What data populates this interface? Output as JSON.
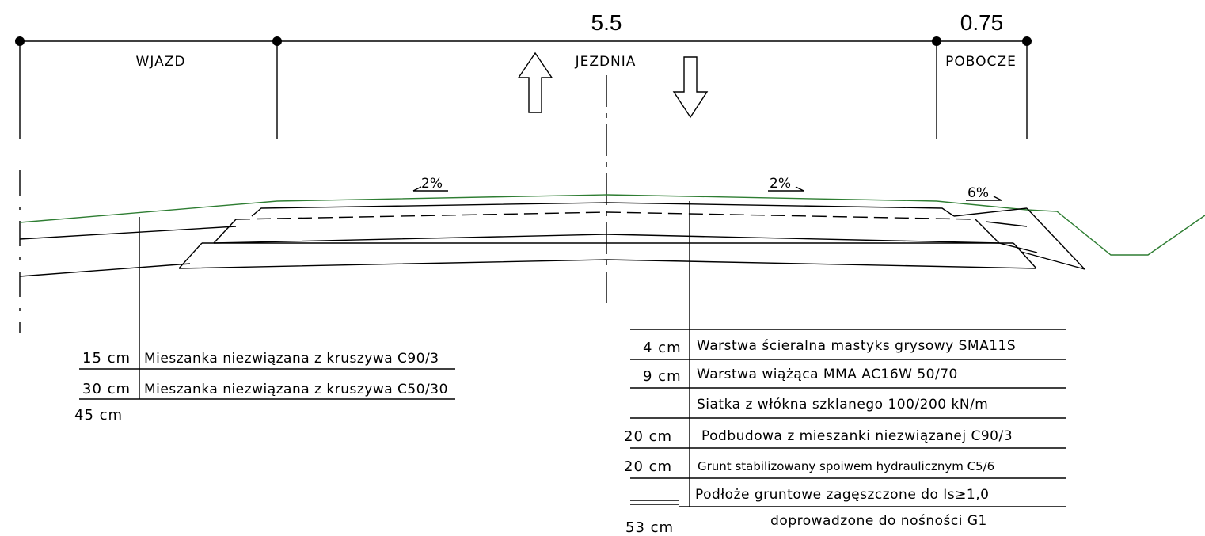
{
  "dimensions": {
    "carriageway_width": "5.5",
    "shoulder_width": "0.75"
  },
  "zones": {
    "entry": "WJAZD",
    "carriageway": "JEZDNIA",
    "shoulder": "POBOCZE"
  },
  "slopes": {
    "left": "2%",
    "right": "2%",
    "shoulder": "6%"
  },
  "left_structure": {
    "layers": [
      {
        "thickness": "15 cm",
        "description": "Mieszanka niezwiązana z kruszywa C90/3"
      },
      {
        "thickness": "30 cm",
        "description": "Mieszanka niezwiązana z kruszywa C50/30"
      }
    ],
    "total": "45 cm"
  },
  "right_structure": {
    "layers": [
      {
        "thickness": "4 cm",
        "description": "Warstwa ścieralna mastyks grysowy SMA11S"
      },
      {
        "thickness": "9 cm",
        "description": "Warstwa wiążąca MMA AC16W 50/70"
      },
      {
        "thickness": "",
        "description": "Siatka z włókna szklanego 100/200 kN/m"
      },
      {
        "thickness": "20 cm",
        "description": "Podbudowa z mieszanki niezwiązanej C90/3"
      },
      {
        "thickness": "20 cm",
        "description": "Grunt stabilizowany spoiwem hydraulicznym C5/6"
      },
      {
        "thickness": "",
        "description": "Podłoże gruntowe zagęszczone do Is≥1,0"
      }
    ],
    "subgrade_note": "doprowadzone do nośności G1",
    "total": "53 cm"
  },
  "colors": {
    "line": "#000000",
    "ground_line": "#2e7d32"
  }
}
